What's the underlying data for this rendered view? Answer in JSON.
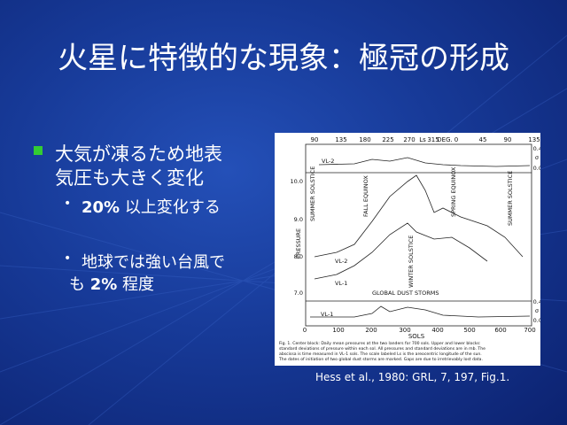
{
  "slide": {
    "title": "火星に特徴的な現象：極冠の形成",
    "bullet": {
      "lines": [
        "大気が凍るため地表",
        "気圧も大きく変化"
      ]
    },
    "sub_bullets": [
      {
        "parts": [
          "20%",
          " 以上変化する"
        ]
      },
      {
        "lines": [
          "地球では強い台風で"
        ],
        "parts": [
          "も ",
          "2%",
          " 程度"
        ]
      }
    ],
    "figure": {
      "top_ticks": [
        "90",
        "135",
        "180",
        "225",
        "270",
        "Ls",
        "315",
        "DEG.",
        "0",
        "45",
        "90",
        "135"
      ],
      "right_labels": [
        "0.4",
        "σ",
        "0.0",
        "0.4",
        "σ",
        "0.0"
      ],
      "left_ticks": [
        "10.0",
        "9.0",
        "8.0",
        "7.0"
      ],
      "y_label": "PRESSURE",
      "series_labels": [
        "VL-2",
        "VL-2",
        "VL-1",
        "VL-1"
      ],
      "annotations": [
        "SUMMER SOLSTICE",
        "FALL EQUINOX",
        "SPRING EQUINOX",
        "SUMMER SOLSTICE",
        "WINTER SOLSTICE",
        "GLOBAL DUST STORMS"
      ],
      "bottom_ticks": [
        "0",
        "100",
        "200",
        "300",
        "400",
        "500",
        "600",
        "700"
      ],
      "x_label": "SOLS",
      "caption": [
        "Fig. 1.  Center block: Daily mean pressures at the two landers for 700 sols.  Upper and lower blocks:",
        "standard deviations of pressure within each sol.  All pressures and standard deviations are in mb.  The",
        "abscissa is time measured in VL-1 sols.  The scale labeled Ls is the areocentric longitude of the sun.",
        "The dates of initiation of two global dust storms are marked.  Gaps are due to irretrievably lost data."
      ]
    },
    "source": "Hess et al., 1980: GRL, 7, 197, Fig.1."
  }
}
